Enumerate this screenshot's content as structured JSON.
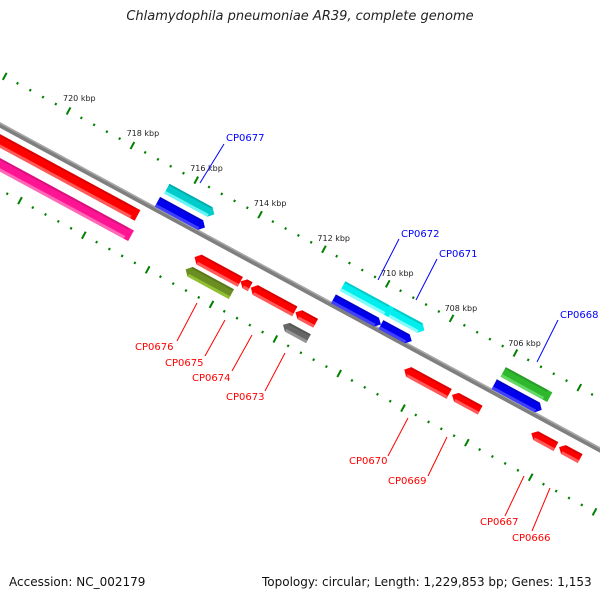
{
  "title": "Chlamydophila pneumoniae AR39, complete genome",
  "footer": {
    "accession": "Accession: NC_002179",
    "stats": "Topology: circular; Length: 1,229,853 bp; Genes: 1,153"
  },
  "ruler": {
    "major_ticks_kbp": [
      720,
      718,
      716,
      714,
      712,
      710,
      708,
      706
    ],
    "labels": [
      "720 kbp",
      "718 kbp",
      "716 kbp",
      "714 kbp",
      "712 kbp",
      "710 kbp",
      "708 kbp",
      "706 kbp"
    ],
    "tick_color": "#008000"
  },
  "colors": {
    "forward_label": "#0000ff",
    "reverse_label": "#ff0000",
    "backbone": "#808080"
  },
  "gene_labels": {
    "forward": [
      "CP0677",
      "CP0672",
      "CP0671",
      "CP0668"
    ],
    "reverse": [
      "CP0676",
      "CP0675",
      "CP0674",
      "CP0673",
      "CP0670",
      "CP0669",
      "CP0667",
      "CP0666"
    ]
  }
}
